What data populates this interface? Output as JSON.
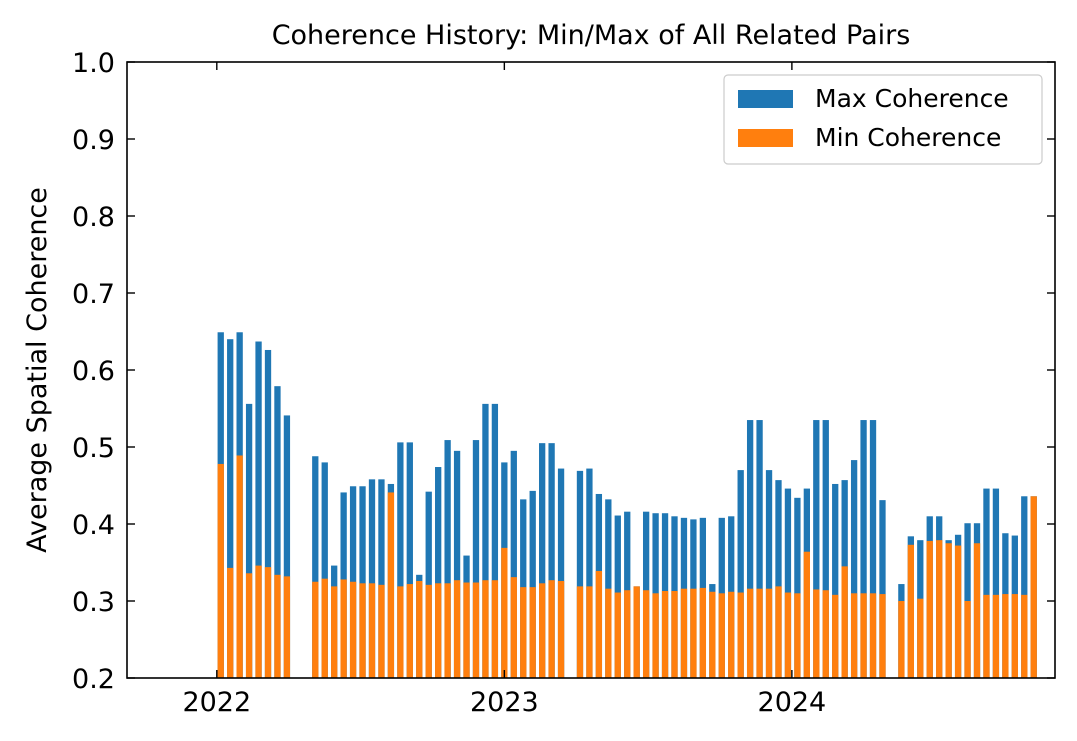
{
  "chart_data": {
    "type": "bar",
    "title": "Coherence History: Min/Max of All Related Pairs",
    "xlabel": "",
    "ylabel": "Average Spatial Coherence",
    "ylim": [
      0.2,
      1.0
    ],
    "yticks": [
      "0.2",
      "0.3",
      "0.4",
      "0.5",
      "0.6",
      "0.7",
      "0.8",
      "0.9",
      "1.0"
    ],
    "xticks": [
      {
        "date": "2022-01-01",
        "label": "2022"
      },
      {
        "date": "2023-01-01",
        "label": "2023"
      },
      {
        "date": "2024-01-01",
        "label": "2024"
      }
    ],
    "xlim": [
      "2021-09-09",
      "2024-11-30"
    ],
    "grid": false,
    "legend_position": "upper right",
    "series": [
      {
        "name": "Max Coherence",
        "color": "#1f77b4",
        "points": [
          [
            "2022-01-06",
            0.649
          ],
          [
            "2022-01-18",
            0.64
          ],
          [
            "2022-01-30",
            0.649
          ],
          [
            "2022-02-11",
            0.556
          ],
          [
            "2022-02-23",
            0.637
          ],
          [
            "2022-03-07",
            0.626
          ],
          [
            "2022-03-19",
            0.579
          ],
          [
            "2022-03-31",
            0.541
          ],
          [
            "2022-05-06",
            0.488
          ],
          [
            "2022-05-18",
            0.48
          ],
          [
            "2022-05-30",
            0.346
          ],
          [
            "2022-06-11",
            0.441
          ],
          [
            "2022-06-23",
            0.449
          ],
          [
            "2022-07-05",
            0.449
          ],
          [
            "2022-07-17",
            0.458
          ],
          [
            "2022-07-29",
            0.458
          ],
          [
            "2022-08-10",
            0.452
          ],
          [
            "2022-08-22",
            0.506
          ],
          [
            "2022-09-03",
            0.506
          ],
          [
            "2022-09-15",
            0.334
          ],
          [
            "2022-09-27",
            0.442
          ],
          [
            "2022-10-09",
            0.474
          ],
          [
            "2022-10-21",
            0.509
          ],
          [
            "2022-11-02",
            0.495
          ],
          [
            "2022-11-14",
            0.359
          ],
          [
            "2022-11-26",
            0.509
          ],
          [
            "2022-12-08",
            0.556
          ],
          [
            "2022-12-20",
            0.556
          ],
          [
            "2023-01-01",
            0.48
          ],
          [
            "2023-01-13",
            0.495
          ],
          [
            "2023-01-25",
            0.432
          ],
          [
            "2023-02-06",
            0.443
          ],
          [
            "2023-02-18",
            0.505
          ],
          [
            "2023-03-02",
            0.505
          ],
          [
            "2023-03-14",
            0.472
          ],
          [
            "2023-04-07",
            0.469
          ],
          [
            "2023-04-19",
            0.472
          ],
          [
            "2023-05-01",
            0.439
          ],
          [
            "2023-05-13",
            0.432
          ],
          [
            "2023-05-25",
            0.411
          ],
          [
            "2023-06-06",
            0.416
          ],
          [
            "2023-06-18",
            0.319
          ],
          [
            "2023-06-30",
            0.416
          ],
          [
            "2023-07-12",
            0.414
          ],
          [
            "2023-07-24",
            0.414
          ],
          [
            "2023-08-05",
            0.41
          ],
          [
            "2023-08-17",
            0.408
          ],
          [
            "2023-08-29",
            0.406
          ],
          [
            "2023-09-10",
            0.408
          ],
          [
            "2023-09-22",
            0.322
          ],
          [
            "2023-10-04",
            0.408
          ],
          [
            "2023-10-16",
            0.41
          ],
          [
            "2023-10-28",
            0.47
          ],
          [
            "2023-11-09",
            0.535
          ],
          [
            "2023-11-21",
            0.535
          ],
          [
            "2023-12-03",
            0.47
          ],
          [
            "2023-12-15",
            0.457
          ],
          [
            "2023-12-27",
            0.446
          ],
          [
            "2024-01-08",
            0.434
          ],
          [
            "2024-01-20",
            0.446
          ],
          [
            "2024-02-01",
            0.535
          ],
          [
            "2024-02-13",
            0.535
          ],
          [
            "2024-02-25",
            0.452
          ],
          [
            "2024-03-08",
            0.457
          ],
          [
            "2024-03-20",
            0.483
          ],
          [
            "2024-04-01",
            0.535
          ],
          [
            "2024-04-13",
            0.535
          ],
          [
            "2024-04-25",
            0.431
          ],
          [
            "2024-05-19",
            0.322
          ],
          [
            "2024-05-31",
            0.384
          ],
          [
            "2024-06-12",
            0.379
          ],
          [
            "2024-06-24",
            0.41
          ],
          [
            "2024-07-06",
            0.41
          ],
          [
            "2024-07-18",
            0.379
          ],
          [
            "2024-07-30",
            0.386
          ],
          [
            "2024-08-11",
            0.401
          ],
          [
            "2024-08-23",
            0.401
          ],
          [
            "2024-09-04",
            0.446
          ],
          [
            "2024-09-16",
            0.446
          ],
          [
            "2024-09-28",
            0.388
          ],
          [
            "2024-10-10",
            0.385
          ],
          [
            "2024-10-22",
            0.436
          ],
          [
            "2024-11-03",
            0.436
          ]
        ]
      },
      {
        "name": "Min Coherence",
        "color": "#ff7f0e",
        "points": [
          [
            "2022-01-06",
            0.478
          ],
          [
            "2022-01-18",
            0.343
          ],
          [
            "2022-01-30",
            0.489
          ],
          [
            "2022-02-11",
            0.336
          ],
          [
            "2022-02-23",
            0.346
          ],
          [
            "2022-03-07",
            0.344
          ],
          [
            "2022-03-19",
            0.334
          ],
          [
            "2022-03-31",
            0.332
          ],
          [
            "2022-05-06",
            0.325
          ],
          [
            "2022-05-18",
            0.329
          ],
          [
            "2022-05-30",
            0.319
          ],
          [
            "2022-06-11",
            0.328
          ],
          [
            "2022-06-23",
            0.325
          ],
          [
            "2022-07-05",
            0.323
          ],
          [
            "2022-07-17",
            0.323
          ],
          [
            "2022-07-29",
            0.321
          ],
          [
            "2022-08-10",
            0.441
          ],
          [
            "2022-08-22",
            0.319
          ],
          [
            "2022-09-03",
            0.322
          ],
          [
            "2022-09-15",
            0.326
          ],
          [
            "2022-09-27",
            0.321
          ],
          [
            "2022-10-09",
            0.323
          ],
          [
            "2022-10-21",
            0.323
          ],
          [
            "2022-11-02",
            0.327
          ],
          [
            "2022-11-14",
            0.324
          ],
          [
            "2022-11-26",
            0.324
          ],
          [
            "2022-12-08",
            0.327
          ],
          [
            "2022-12-20",
            0.327
          ],
          [
            "2023-01-01",
            0.369
          ],
          [
            "2023-01-13",
            0.331
          ],
          [
            "2023-01-25",
            0.318
          ],
          [
            "2023-02-06",
            0.318
          ],
          [
            "2023-02-18",
            0.323
          ],
          [
            "2023-03-02",
            0.327
          ],
          [
            "2023-03-14",
            0.326
          ],
          [
            "2023-04-07",
            0.319
          ],
          [
            "2023-04-19",
            0.319
          ],
          [
            "2023-05-01",
            0.339
          ],
          [
            "2023-05-13",
            0.316
          ],
          [
            "2023-05-25",
            0.311
          ],
          [
            "2023-06-06",
            0.314
          ],
          [
            "2023-06-18",
            0.319
          ],
          [
            "2023-06-30",
            0.314
          ],
          [
            "2023-07-12",
            0.31
          ],
          [
            "2023-07-24",
            0.313
          ],
          [
            "2023-08-05",
            0.313
          ],
          [
            "2023-08-17",
            0.316
          ],
          [
            "2023-08-29",
            0.316
          ],
          [
            "2023-09-10",
            0.317
          ],
          [
            "2023-09-22",
            0.312
          ],
          [
            "2023-10-04",
            0.31
          ],
          [
            "2023-10-16",
            0.312
          ],
          [
            "2023-10-28",
            0.311
          ],
          [
            "2023-11-09",
            0.316
          ],
          [
            "2023-11-21",
            0.316
          ],
          [
            "2023-12-03",
            0.316
          ],
          [
            "2023-12-15",
            0.319
          ],
          [
            "2023-12-27",
            0.311
          ],
          [
            "2024-01-08",
            0.31
          ],
          [
            "2024-01-20",
            0.364
          ],
          [
            "2024-02-01",
            0.315
          ],
          [
            "2024-02-13",
            0.314
          ],
          [
            "2024-02-25",
            0.308
          ],
          [
            "2024-03-08",
            0.345
          ],
          [
            "2024-03-20",
            0.31
          ],
          [
            "2024-04-01",
            0.31
          ],
          [
            "2024-04-13",
            0.31
          ],
          [
            "2024-04-25",
            0.309
          ],
          [
            "2024-05-19",
            0.3
          ],
          [
            "2024-05-31",
            0.373
          ],
          [
            "2024-06-12",
            0.303
          ],
          [
            "2024-06-24",
            0.378
          ],
          [
            "2024-07-06",
            0.379
          ],
          [
            "2024-07-18",
            0.375
          ],
          [
            "2024-07-30",
            0.372
          ],
          [
            "2024-08-11",
            0.3
          ],
          [
            "2024-08-23",
            0.375
          ],
          [
            "2024-09-04",
            0.308
          ],
          [
            "2024-09-16",
            0.308
          ],
          [
            "2024-09-28",
            0.309
          ],
          [
            "2024-10-10",
            0.309
          ],
          [
            "2024-10-22",
            0.308
          ],
          [
            "2024-11-03",
            0.436
          ]
        ]
      }
    ]
  }
}
